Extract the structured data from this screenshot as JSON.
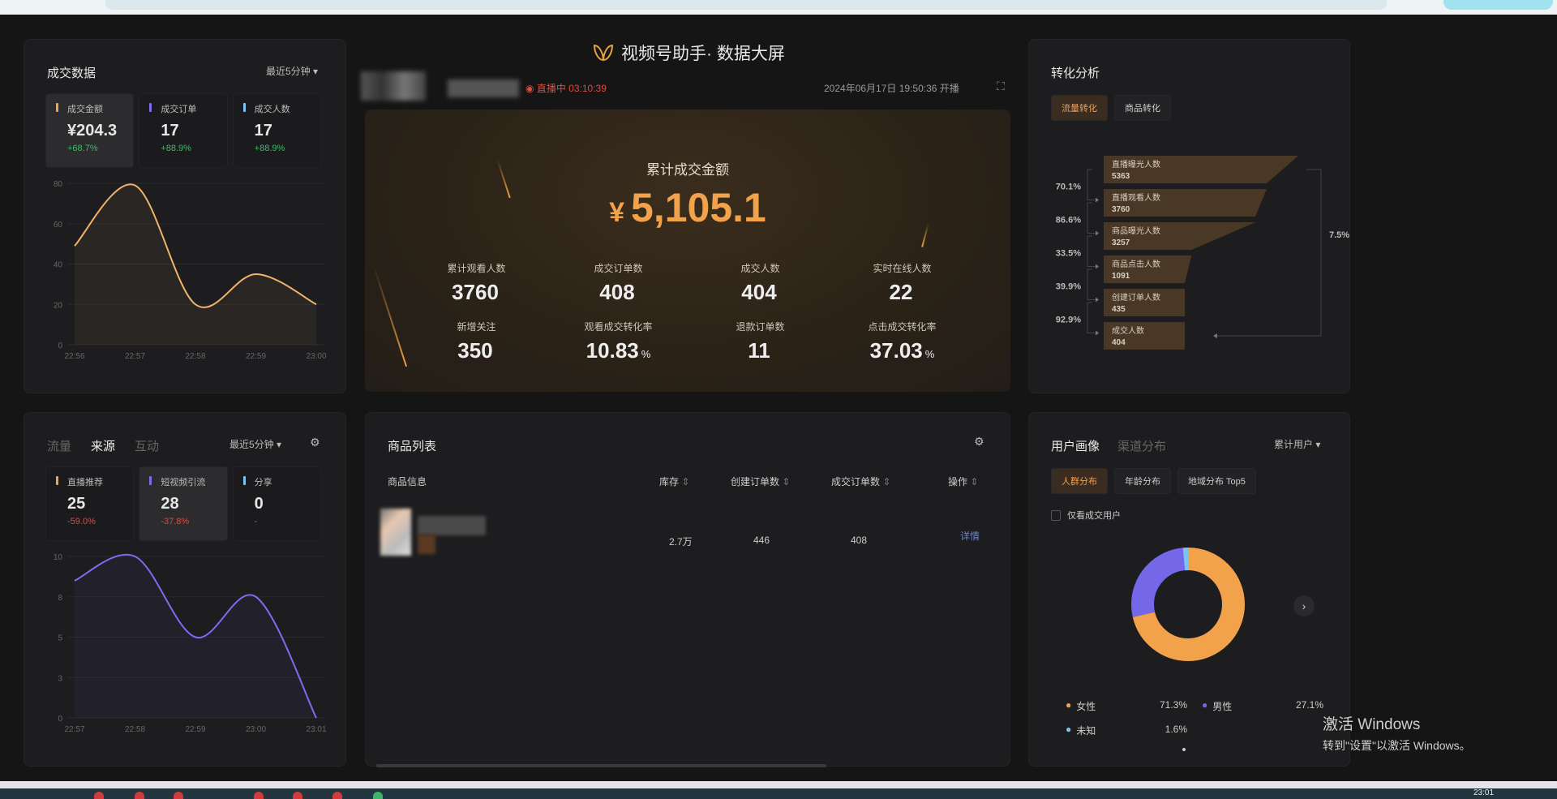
{
  "app": {
    "title": "视频号助手· 数据大屏",
    "live_status": "直播中 03:10:39",
    "start_time": "2024年06月17日 19:50:36 开播",
    "accent": "#f2a24a"
  },
  "deal_panel": {
    "title": "成交数据",
    "range": "最近5分钟",
    "kpis": [
      {
        "label": "成交金额",
        "value": "¥204.3",
        "change": "+68.7%",
        "color": "#f2a24a",
        "active": true
      },
      {
        "label": "成交订单",
        "value": "17",
        "change": "+88.9%",
        "color": "#7b6cf0",
        "active": false
      },
      {
        "label": "成交人数",
        "value": "17",
        "change": "+88.9%",
        "color": "#7cc4f0",
        "active": false
      }
    ]
  },
  "source_panel": {
    "tabs": [
      "流量",
      "来源",
      "互动"
    ],
    "active_tab": "来源",
    "range": "最近5分钟",
    "kpis": [
      {
        "label": "直播推荐",
        "value": "25",
        "change": "-59.0%",
        "color": "#f2a24a",
        "active": false
      },
      {
        "label": "短视频引流",
        "value": "28",
        "change": "-37.8%",
        "color": "#7b6cf0",
        "active": true
      },
      {
        "label": "分享",
        "value": "0",
        "change": "-",
        "color": "#7cc4f0",
        "active": false
      }
    ]
  },
  "hero": {
    "total_label": "累计成交金额",
    "currency": "¥",
    "total_value": "5,105.1",
    "stats": [
      {
        "label": "累计观看人数",
        "value": "3760",
        "unit": ""
      },
      {
        "label": "成交订单数",
        "value": "408",
        "unit": ""
      },
      {
        "label": "成交人数",
        "value": "404",
        "unit": ""
      },
      {
        "label": "实时在线人数",
        "value": "22",
        "unit": ""
      },
      {
        "label": "新增关注",
        "value": "350",
        "unit": ""
      },
      {
        "label": "观看成交转化率",
        "value": "10.83",
        "unit": "%"
      },
      {
        "label": "退款订单数",
        "value": "11",
        "unit": ""
      },
      {
        "label": "点击成交转化率",
        "value": "37.03",
        "unit": "%"
      }
    ]
  },
  "products": {
    "title": "商品列表",
    "columns": [
      "商品信息",
      "库存",
      "创建订单数",
      "成交订单数",
      "操作"
    ],
    "rows": [
      {
        "stock": "2.7万",
        "created": "446",
        "deals": "408",
        "action": "详情"
      }
    ]
  },
  "conversion": {
    "title": "转化分析",
    "tabs": [
      "流量转化",
      "商品转化"
    ],
    "active_tab": "流量转化",
    "overall_rate": "7.5%"
  },
  "portrait": {
    "tabs": [
      "用户画像",
      "渠道分布"
    ],
    "active_tab": "用户画像",
    "range": "累计用户",
    "subtabs": [
      "人群分布",
      "年龄分布",
      "地域分布 Top5"
    ],
    "active_subtab": "人群分布",
    "checkbox_label": "仅看成交用户",
    "checkbox_checked": false
  },
  "watermark": {
    "line1": "激活 Windows",
    "line2": "转到\"设置\"以激活 Windows。"
  },
  "taskbar": {
    "clock": "23:01"
  },
  "chart_data": [
    {
      "type": "line",
      "title": "",
      "x": [
        "22:56",
        "22:57",
        "22:58",
        "22:59",
        "23:00"
      ],
      "series": [
        {
          "values": [
            49,
            79,
            20,
            35,
            20
          ],
          "color": "#f2b46a"
        }
      ],
      "ylim": [
        0,
        80
      ],
      "yticks": [
        0,
        20,
        40,
        60,
        80
      ],
      "grid": true
    },
    {
      "type": "line",
      "title": "",
      "x": [
        "22:57",
        "22:58",
        "22:59",
        "23:00",
        "23:01"
      ],
      "series": [
        {
          "values": [
            8.5,
            10,
            5,
            7.5,
            0
          ],
          "color": "#7b6cf0"
        }
      ],
      "ylim": [
        0,
        10
      ],
      "yticks": [
        "0",
        "3",
        "5",
        "8",
        "10"
      ],
      "grid": true
    },
    {
      "type": "funnel",
      "stages": [
        {
          "label": "直播曝光人数",
          "value": 5363
        },
        {
          "label": "直播观看人数",
          "value": 3760
        },
        {
          "label": "商品曝光人数",
          "value": 3257
        },
        {
          "label": "商品点击人数",
          "value": 1091
        },
        {
          "label": "创建订单人数",
          "value": 435
        },
        {
          "label": "成交人数",
          "value": 404
        }
      ],
      "step_rates": [
        "70.1%",
        "86.6%",
        "33.5%",
        "39.9%",
        "92.9%"
      ],
      "overall_rate": "7.5%"
    },
    {
      "type": "pie",
      "donut": true,
      "slices": [
        {
          "label": "女性",
          "value": 71.3,
          "display": "71.3%",
          "color": "#f2a24a"
        },
        {
          "label": "男性",
          "value": 27.1,
          "display": "27.1%",
          "color": "#7467e8"
        },
        {
          "label": "未知",
          "value": 1.6,
          "display": "1.6%",
          "color": "#7cc4f0"
        }
      ]
    }
  ]
}
